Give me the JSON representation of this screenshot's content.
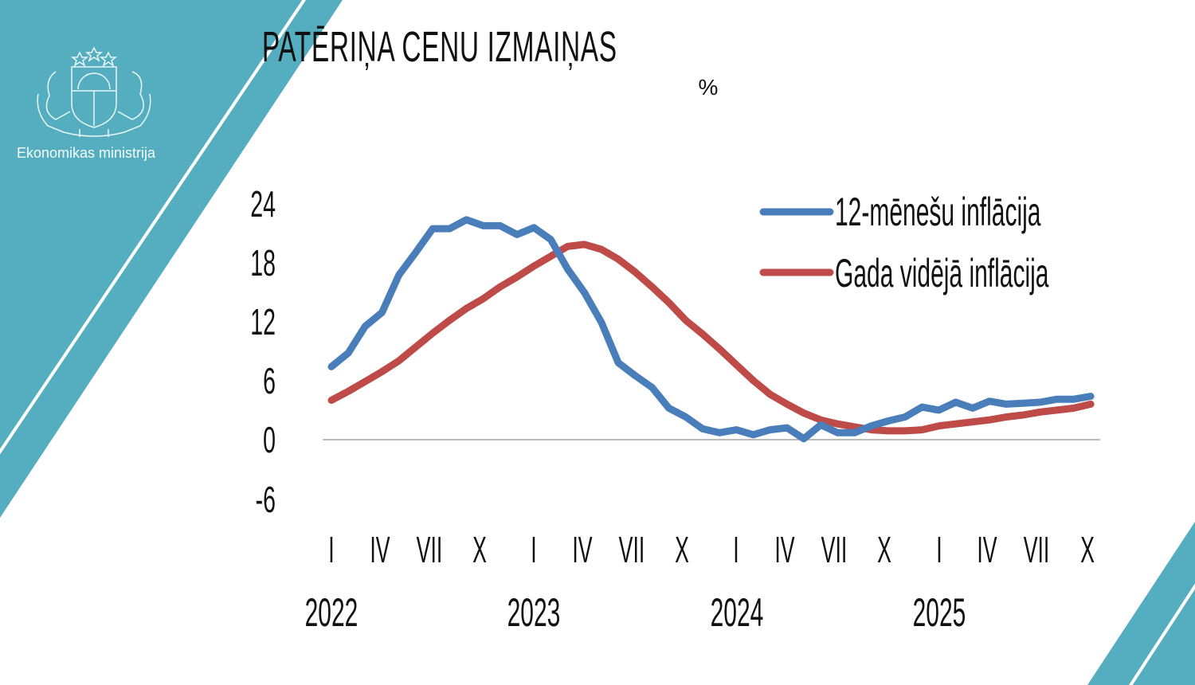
{
  "branding": {
    "org_name": "Ekonomikas ministrija",
    "teal": "#55aebf"
  },
  "header": {
    "title": "PATĒRIŅA CENU IZMAIŅAS",
    "unit": "%"
  },
  "chart_data": {
    "type": "line",
    "title": "PATĒRIŅA CENU IZMAIŅAS",
    "subtitle": "%",
    "xlabel": "",
    "ylabel": "%",
    "ylim": [
      -6,
      24
    ],
    "y_ticks": [
      "24",
      "18",
      "12",
      "6",
      "0",
      "-6"
    ],
    "x_month_ticks": [
      "I",
      "IV",
      "VII",
      "X",
      "I",
      "IV",
      "VII",
      "X",
      "I",
      "IV",
      "VII",
      "X",
      "I",
      "IV",
      "VII",
      "X"
    ],
    "x_years": [
      "2022",
      "2023",
      "2024",
      "2025"
    ],
    "x_range": "2022-01 to 2025-10 (monthly)",
    "grid": false,
    "legend_position": "top-right",
    "series": [
      {
        "name": "12-mēnešu inflācija",
        "color": "#4a7ebb",
        "values": [
          7.4,
          8.8,
          11.5,
          12.9,
          16.7,
          19.0,
          21.4,
          21.4,
          22.3,
          21.7,
          21.7,
          20.8,
          21.5,
          20.3,
          17.3,
          14.9,
          11.9,
          7.8,
          6.5,
          5.3,
          3.2,
          2.3,
          1.1,
          0.7,
          1.0,
          0.5,
          1.0,
          1.2,
          0.1,
          1.5,
          0.7,
          0.7,
          1.4,
          1.9,
          2.3,
          3.3,
          3.0,
          3.8,
          3.2,
          3.9,
          3.6,
          3.7,
          3.8,
          4.1,
          4.1,
          4.4
        ]
      },
      {
        "name": "Gada vidējā inflācija",
        "color": "#be4b48",
        "values": [
          4.0,
          4.9,
          5.9,
          6.9,
          8.0,
          9.4,
          10.8,
          12.1,
          13.3,
          14.3,
          15.5,
          16.5,
          17.6,
          18.6,
          19.6,
          19.8,
          19.3,
          18.3,
          17.0,
          15.5,
          13.9,
          12.1,
          10.7,
          9.2,
          7.6,
          6.0,
          4.6,
          3.6,
          2.7,
          2.0,
          1.6,
          1.3,
          1.0,
          0.9,
          0.9,
          1.0,
          1.4,
          1.6,
          1.8,
          2.0,
          2.3,
          2.5,
          2.8,
          3.0,
          3.2,
          3.6
        ]
      }
    ]
  }
}
